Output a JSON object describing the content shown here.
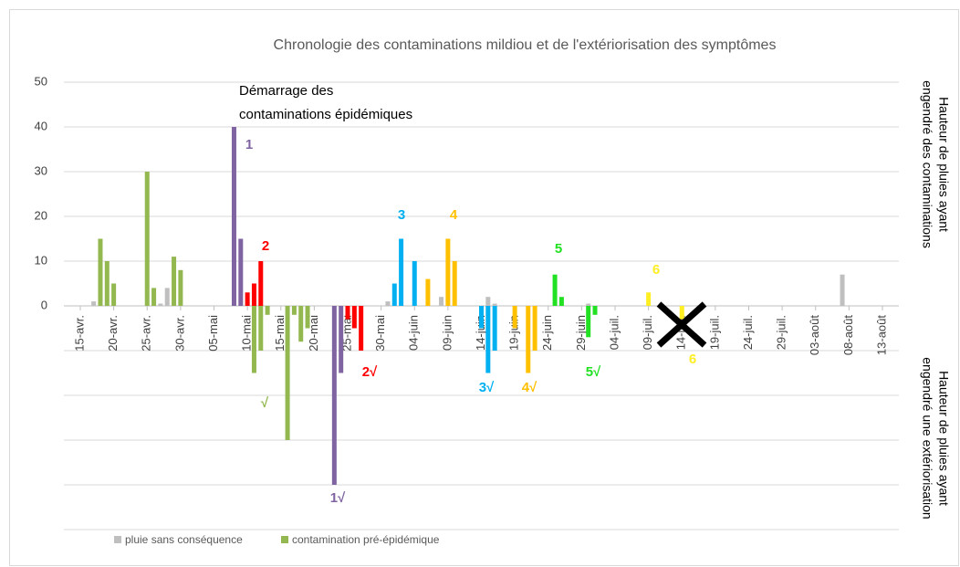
{
  "chart_data": {
    "type": "bar",
    "title": "Chronologie des contaminations mildiou et de l'extériorisation des symptômes",
    "y_label_top": [
      "Hauteur de pluies ayant",
      "engendré des contaminations"
    ],
    "y_label_bottom": [
      "Hauteur de pluies ayant",
      "engendré une extériorisation"
    ],
    "categories": [
      "15-avr.",
      null,
      null,
      null,
      null,
      "20-avr.",
      null,
      null,
      null,
      null,
      "25-avr.",
      null,
      null,
      null,
      null,
      "30-avr.",
      null,
      null,
      null,
      null,
      "05-mai",
      null,
      null,
      null,
      null,
      "10-mai",
      null,
      null,
      null,
      null,
      "15-mai",
      null,
      null,
      null,
      null,
      "20-mai",
      null,
      null,
      null,
      null,
      "25-mai",
      null,
      null,
      null,
      null,
      "30-mai",
      null,
      null,
      null,
      null,
      "04-juin",
      null,
      null,
      null,
      null,
      "09-juin",
      null,
      null,
      null,
      null,
      "14-juin",
      null,
      null,
      null,
      null,
      "19-juin",
      null,
      null,
      null,
      null,
      "24-juin",
      null,
      null,
      null,
      null,
      "29-juin",
      null,
      null,
      null,
      null,
      "04-juil.",
      null,
      null,
      null,
      null,
      "09-juil.",
      null,
      null,
      null,
      null,
      "14-juil.",
      null,
      null,
      null,
      null,
      "19-juil.",
      null,
      null,
      null,
      null,
      "24-juil.",
      null,
      null,
      null,
      null,
      "29-juil.",
      null,
      null,
      null,
      null,
      "03-août",
      null,
      null,
      null,
      null,
      "08-août",
      null,
      null,
      null,
      null,
      "13-août"
    ],
    "series": [
      {
        "name": "pluie sans conséquence",
        "color": "#bfbfbf",
        "values": [
          null,
          null,
          1,
          null,
          null,
          null,
          null,
          null,
          null,
          null,
          null,
          null,
          0.5,
          4,
          null,
          null,
          null,
          null,
          null,
          null,
          null,
          null,
          null,
          null,
          null,
          null,
          null,
          null,
          null,
          null,
          null,
          null,
          null,
          null,
          null,
          null,
          null,
          null,
          null,
          null,
          null,
          null,
          null,
          null,
          null,
          null,
          1,
          null,
          null,
          null,
          null,
          null,
          null,
          null,
          2,
          null,
          null,
          null,
          null,
          null,
          null,
          2,
          0.5,
          null,
          null,
          null,
          null,
          null,
          null,
          null,
          null,
          null,
          null,
          null,
          null,
          null,
          0.5,
          null,
          null,
          null,
          null,
          null,
          null,
          null,
          null,
          null,
          null,
          null,
          null,
          null,
          null,
          null,
          null,
          null,
          null,
          null,
          null,
          null,
          null,
          null,
          null,
          null,
          null,
          null,
          null,
          null,
          null,
          null,
          null,
          null,
          null,
          null,
          null,
          null,
          7,
          null,
          null,
          null,
          null,
          null,
          null
        ]
      },
      {
        "name": "contamination pré-épidémique",
        "color": "#92b84f",
        "values": [
          null,
          null,
          null,
          15,
          10,
          5,
          null,
          null,
          null,
          null,
          30,
          4,
          null,
          null,
          11,
          8,
          null,
          null,
          null,
          null,
          null,
          null,
          null,
          null,
          null,
          null,
          -15,
          -10,
          -2,
          null,
          null,
          -30,
          -2,
          -8,
          -5,
          null,
          null,
          null,
          null,
          null,
          null,
          null,
          null,
          null,
          null,
          null,
          null,
          null,
          null,
          null,
          null,
          null,
          null,
          null,
          null,
          null,
          null,
          null,
          null,
          null,
          null,
          null,
          null,
          null,
          null,
          null,
          null,
          null,
          null,
          null,
          null,
          null,
          null,
          null,
          null,
          null,
          null,
          null,
          null,
          null,
          null,
          null,
          null,
          null,
          null,
          null,
          null,
          null,
          null,
          null,
          null,
          null,
          null,
          null,
          null,
          null,
          null,
          null,
          null,
          null,
          null,
          null,
          null,
          null,
          null,
          null,
          null,
          null,
          null,
          null,
          null,
          null,
          null,
          null,
          null,
          null,
          null,
          null,
          null,
          null,
          null
        ]
      },
      {
        "color": "#8064a2",
        "values": [
          null,
          null,
          null,
          null,
          null,
          null,
          null,
          null,
          null,
          null,
          null,
          null,
          null,
          null,
          null,
          null,
          null,
          null,
          null,
          null,
          null,
          null,
          null,
          40,
          15,
          null,
          null,
          null,
          null,
          null,
          null,
          null,
          null,
          null,
          null,
          null,
          null,
          null,
          -40,
          -15,
          null,
          null,
          null,
          null,
          null,
          null,
          null,
          null,
          null,
          null,
          null,
          null,
          null,
          null,
          null,
          null,
          null,
          null,
          null,
          null,
          null,
          null,
          null,
          null,
          null,
          null,
          null,
          null,
          null,
          null,
          null,
          null,
          null,
          null,
          null,
          null,
          null,
          null,
          null,
          null,
          null,
          null,
          null,
          null,
          null,
          null,
          null,
          null,
          null,
          null,
          null,
          null,
          null,
          null,
          null,
          null,
          null,
          null,
          null,
          null,
          null,
          null,
          null,
          null,
          null,
          null,
          null,
          null,
          null,
          null,
          null,
          null,
          null,
          null,
          null,
          null,
          null,
          null,
          null,
          null,
          null
        ]
      },
      {
        "color": "#ff0000",
        "values": [
          null,
          null,
          null,
          null,
          null,
          null,
          null,
          null,
          null,
          null,
          null,
          null,
          null,
          null,
          null,
          null,
          null,
          null,
          null,
          null,
          null,
          null,
          null,
          null,
          null,
          3,
          5,
          10,
          null,
          null,
          null,
          null,
          null,
          null,
          null,
          null,
          null,
          null,
          null,
          null,
          -3,
          -5,
          -10,
          null,
          null,
          null,
          null,
          null,
          null,
          null,
          null,
          null,
          null,
          null,
          null,
          null,
          null,
          null,
          null,
          null,
          null,
          null,
          null,
          null,
          null,
          null,
          null,
          null,
          null,
          null,
          null,
          null,
          null,
          null,
          null,
          null,
          null,
          null,
          null,
          null,
          null,
          null,
          null,
          null,
          null,
          null,
          null,
          null,
          null,
          null,
          null,
          null,
          null,
          null,
          null,
          null,
          null,
          null,
          null,
          null,
          null,
          null,
          null,
          null,
          null,
          null,
          null,
          null,
          null,
          null,
          null,
          null,
          null,
          null,
          null,
          null,
          null,
          null,
          null,
          null,
          null
        ]
      },
      {
        "color": "#00b0f0",
        "values": [
          null,
          null,
          null,
          null,
          null,
          null,
          null,
          null,
          null,
          null,
          null,
          null,
          null,
          null,
          null,
          null,
          null,
          null,
          null,
          null,
          null,
          null,
          null,
          null,
          null,
          null,
          null,
          null,
          null,
          null,
          null,
          null,
          null,
          null,
          null,
          null,
          null,
          null,
          null,
          null,
          null,
          null,
          null,
          null,
          null,
          null,
          null,
          5,
          15,
          null,
          10,
          null,
          null,
          null,
          null,
          null,
          null,
          null,
          null,
          null,
          -5,
          -15,
          -10,
          null,
          null,
          null,
          null,
          null,
          null,
          null,
          null,
          null,
          null,
          null,
          null,
          null,
          null,
          null,
          null,
          null,
          null,
          null,
          null,
          null,
          null,
          null,
          null,
          null,
          null,
          null,
          null,
          null,
          null,
          null,
          null,
          null,
          null,
          null,
          null,
          null,
          null,
          null,
          null,
          null,
          null,
          null,
          null,
          null,
          null,
          null,
          null,
          null,
          null,
          null,
          null,
          null,
          null,
          null,
          null,
          null,
          null
        ]
      },
      {
        "color": "#ffc000",
        "values": [
          null,
          null,
          null,
          null,
          null,
          null,
          null,
          null,
          null,
          null,
          null,
          null,
          null,
          null,
          null,
          null,
          null,
          null,
          null,
          null,
          null,
          null,
          null,
          null,
          null,
          null,
          null,
          null,
          null,
          null,
          null,
          null,
          null,
          null,
          null,
          null,
          null,
          null,
          null,
          null,
          null,
          null,
          null,
          null,
          null,
          null,
          null,
          null,
          null,
          null,
          null,
          null,
          6,
          null,
          null,
          15,
          10,
          null,
          null,
          null,
          null,
          null,
          null,
          null,
          null,
          -5,
          null,
          -15,
          -10,
          null,
          null,
          null,
          null,
          null,
          null,
          null,
          null,
          null,
          null,
          null,
          null,
          null,
          null,
          null,
          null,
          null,
          null,
          null,
          null,
          null,
          null,
          null,
          null,
          null,
          null,
          null,
          null,
          null,
          null,
          null,
          null,
          null,
          null,
          null,
          null,
          null,
          null,
          null,
          null,
          null,
          null,
          null,
          null,
          null,
          null,
          null,
          null,
          null,
          null,
          null,
          null
        ]
      },
      {
        "color": "#22e022",
        "values": [
          null,
          null,
          null,
          null,
          null,
          null,
          null,
          null,
          null,
          null,
          null,
          null,
          null,
          null,
          null,
          null,
          null,
          null,
          null,
          null,
          null,
          null,
          null,
          null,
          null,
          null,
          null,
          null,
          null,
          null,
          null,
          null,
          null,
          null,
          null,
          null,
          null,
          null,
          null,
          null,
          null,
          null,
          null,
          null,
          null,
          null,
          null,
          null,
          null,
          null,
          null,
          null,
          null,
          null,
          null,
          null,
          null,
          null,
          null,
          null,
          null,
          null,
          null,
          null,
          null,
          null,
          null,
          null,
          null,
          null,
          null,
          7,
          2,
          null,
          null,
          null,
          -7,
          -2,
          null,
          null,
          null,
          null,
          null,
          null,
          null,
          null,
          null,
          null,
          null,
          null,
          null,
          null,
          null,
          null,
          null,
          null,
          null,
          null,
          null,
          null,
          null,
          null,
          null,
          null,
          null,
          null,
          null,
          null,
          null,
          null,
          null,
          null,
          null,
          null,
          null,
          null,
          null,
          null,
          null,
          null,
          null
        ]
      },
      {
        "color": "#ffee22",
        "values": [
          null,
          null,
          null,
          null,
          null,
          null,
          null,
          null,
          null,
          null,
          null,
          null,
          null,
          null,
          null,
          null,
          null,
          null,
          null,
          null,
          null,
          null,
          null,
          null,
          null,
          null,
          null,
          null,
          null,
          null,
          null,
          null,
          null,
          null,
          null,
          null,
          null,
          null,
          null,
          null,
          null,
          null,
          null,
          null,
          null,
          null,
          null,
          null,
          null,
          null,
          null,
          null,
          null,
          null,
          null,
          null,
          null,
          null,
          null,
          null,
          null,
          null,
          null,
          null,
          null,
          null,
          null,
          null,
          null,
          null,
          null,
          null,
          null,
          null,
          null,
          null,
          null,
          null,
          null,
          null,
          null,
          null,
          null,
          null,
          null,
          3,
          null,
          null,
          null,
          null,
          -3,
          null,
          null,
          null,
          null,
          null,
          null,
          null,
          null,
          null,
          null,
          null,
          null,
          null,
          null,
          null,
          null,
          null,
          null,
          null,
          null,
          null,
          null,
          null,
          null,
          null,
          null,
          null,
          null,
          null,
          null
        ]
      }
    ],
    "ylim": [
      -50,
      50
    ],
    "yticks": [
      {
        "value": -50,
        "label": null
      },
      {
        "value": -40,
        "label": null
      },
      {
        "value": -30,
        "label": null
      },
      {
        "value": -20,
        "label": null
      },
      {
        "value": -10,
        "label": null
      },
      0,
      10,
      20,
      30,
      40,
      50
    ],
    "grid": true,
    "legend": "bottom-left",
    "annotations": [
      {
        "text": "Démarrage des",
        "color": "#000000"
      },
      {
        "text": "contaminations épidémiques",
        "color": "#000000"
      },
      {
        "text": "1",
        "color": "#8064a2"
      },
      {
        "text": "2",
        "color": "#ff0000"
      },
      {
        "text": "3",
        "color": "#00b0f0"
      },
      {
        "text": "4",
        "color": "#ffc000"
      },
      {
        "text": "5",
        "color": "#22e022"
      },
      {
        "text": "6",
        "color": "#ffee22"
      },
      {
        "text": "√",
        "color": "#92b84f"
      },
      {
        "text": "1√",
        "color": "#8064a2"
      },
      {
        "text": "2√",
        "color": "#ff0000"
      },
      {
        "text": "3√",
        "color": "#00b0f0"
      },
      {
        "text": "4√",
        "color": "#ffc000"
      },
      {
        "text": "5√",
        "color": "#22e022"
      },
      {
        "text": "6",
        "color": "#ffee22"
      }
    ]
  }
}
